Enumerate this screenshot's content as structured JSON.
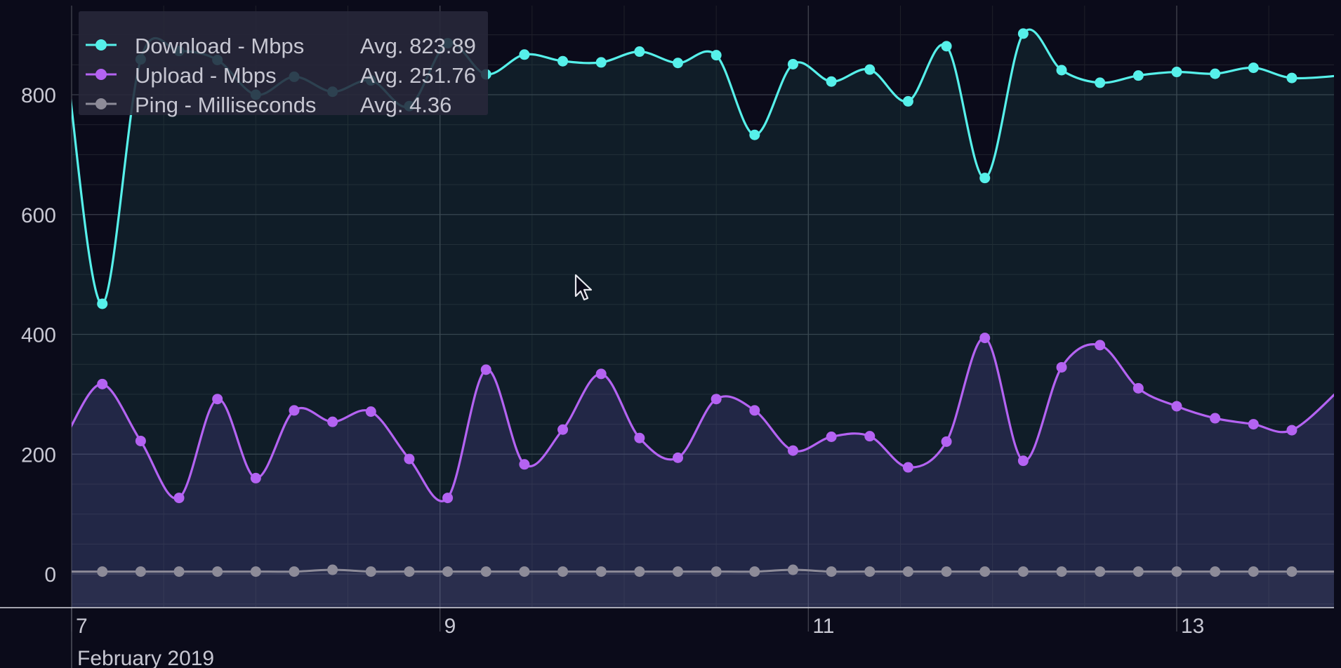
{
  "chart_data": {
    "type": "line",
    "x_axis": {
      "tick_labels": [
        "7",
        "9",
        "11",
        "13"
      ],
      "tick_dates": [
        "2019-02-07",
        "2019-02-09",
        "2019-02-11",
        "2019-02-13"
      ],
      "sub_label": "February 2019",
      "range": [
        "2019-02-07",
        "2019-02-13T20:00"
      ]
    },
    "y_axis": {
      "tick_labels": [
        "0",
        "200",
        "400",
        "600",
        "800"
      ],
      "ylim": [
        -50,
        940
      ]
    },
    "x": [
      "2019-02-07T04:00",
      "2019-02-07T09:00",
      "2019-02-07T14:00",
      "2019-02-07T19:00",
      "2019-02-08T00:00",
      "2019-02-08T05:00",
      "2019-02-08T10:00",
      "2019-02-08T15:00",
      "2019-02-08T20:00",
      "2019-02-09T01:00",
      "2019-02-09T06:00",
      "2019-02-09T11:00",
      "2019-02-09T16:00",
      "2019-02-09T21:00",
      "2019-02-10T02:00",
      "2019-02-10T07:00",
      "2019-02-10T12:00",
      "2019-02-10T17:00",
      "2019-02-10T22:00",
      "2019-02-11T03:00",
      "2019-02-11T08:00",
      "2019-02-11T13:00",
      "2019-02-11T18:00",
      "2019-02-11T23:00",
      "2019-02-12T04:00",
      "2019-02-12T09:00",
      "2019-02-12T14:00",
      "2019-02-12T19:00",
      "2019-02-13T00:00",
      "2019-02-13T05:00",
      "2019-02-13T10:00",
      "2019-02-13T15:00"
    ],
    "series": [
      {
        "name": "Download - Mbps",
        "avg_label": "Avg. 823.89",
        "color": "#56f0ea",
        "values": [
          451,
          859,
          873,
          858,
          800,
          830,
          805,
          824,
          781,
          886,
          834,
          867,
          856,
          854,
          872,
          853,
          866,
          733,
          851,
          822,
          842,
          789,
          881,
          661,
          902,
          841,
          820,
          832,
          838,
          835,
          845,
          828
        ],
        "lead_value": 815,
        "tail_value": 832
      },
      {
        "name": "Upload - Mbps",
        "avg_label": "Avg. 251.76",
        "color": "#b463f2",
        "values": [
          317,
          222,
          127,
          292,
          160,
          273,
          254,
          271,
          192,
          127,
          341,
          183,
          241,
          334,
          227,
          194,
          292,
          273,
          206,
          229,
          230,
          178,
          221,
          394,
          189,
          345,
          382,
          310,
          280,
          260,
          250,
          240
        ],
        "lead_value": 240,
        "tail_value": 310
      },
      {
        "name": "Ping - Milliseconds",
        "avg_label": "Avg. 4.36",
        "color": "#8d8b98",
        "values": [
          4,
          4,
          4,
          4,
          4,
          4,
          7,
          4,
          4,
          4,
          4,
          4,
          4,
          4,
          4,
          4,
          4,
          4,
          7,
          4,
          4,
          4,
          4,
          4,
          4,
          4,
          4,
          4,
          4,
          4,
          4,
          4
        ],
        "lead_value": 4,
        "tail_value": 4
      }
    ],
    "grid": true,
    "legend_position": "top-left"
  }
}
